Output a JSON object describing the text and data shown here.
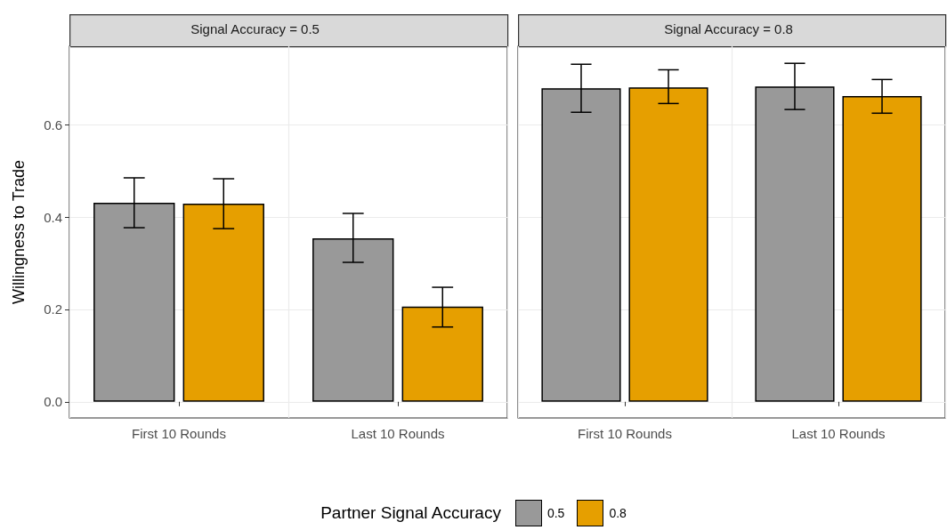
{
  "chart_data": [
    {
      "type": "bar",
      "title": "Signal Accuracy = 0.5",
      "ylabel": "Willingness to Trade",
      "categories": [
        "First 10 Rounds",
        "Last 10 Rounds"
      ],
      "series": [
        {
          "name": "0.5",
          "color": "#999999",
          "values": [
            0.431,
            0.354
          ],
          "errors": [
            [
              0.377,
              0.485
            ],
            [
              0.302,
              0.408
            ]
          ]
        },
        {
          "name": "0.8",
          "color": "#e69f00",
          "values": [
            0.429,
            0.206
          ],
          "errors": [
            [
              0.375,
              0.483
            ],
            [
              0.162,
              0.248
            ]
          ]
        }
      ],
      "ylim": [
        -0.035,
        0.77
      ],
      "yticks": [
        {
          "value": 0,
          "label": "0.0"
        },
        0.2,
        0.4,
        0.6
      ],
      "grid": true,
      "legend": "bottom",
      "legend_title": "Partner Signal Accuracy"
    },
    {
      "type": "bar",
      "title": "Signal Accuracy = 0.8",
      "categories": [
        "First 10 Rounds",
        "Last 10 Rounds"
      ],
      "series": [
        {
          "name": "0.5",
          "color": "#999999",
          "values": [
            0.679,
            0.683
          ],
          "errors": [
            [
              0.627,
              0.731
            ],
            [
              0.633,
              0.733
            ]
          ]
        },
        {
          "name": "0.8",
          "color": "#e69f00",
          "values": [
            0.681,
            0.662
          ],
          "errors": [
            [
              0.646,
              0.719
            ],
            [
              0.625,
              0.698
            ]
          ]
        }
      ],
      "ylim": [
        -0.035,
        0.77
      ],
      "yticks": [
        0,
        0.2,
        0.4,
        0.6
      ],
      "grid": true,
      "tick_labels": "x"
    }
  ]
}
